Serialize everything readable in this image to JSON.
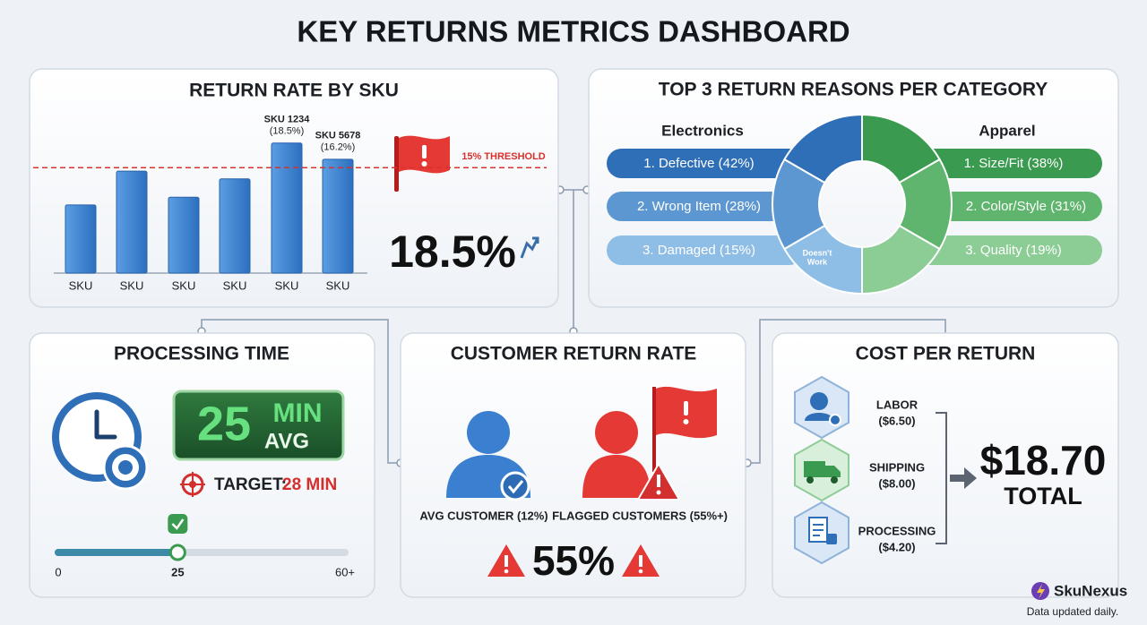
{
  "title": "KEY RETURNS METRICS DASHBOARD",
  "chart_data": {
    "type": "bar",
    "title": "RETURN RATE BY SKU",
    "categories": [
      "SKU",
      "SKU",
      "SKU",
      "SKU",
      "SKU",
      "SKU"
    ],
    "values": [
      9.7,
      14.5,
      10.8,
      13.4,
      18.5,
      16.2
    ],
    "bar_labels": [
      null,
      null,
      null,
      null,
      "SKU 1234",
      "SKU 5678"
    ],
    "value_labels": [
      null,
      null,
      null,
      null,
      "(18.5%)",
      "(16.2%)"
    ],
    "color": "#3b82d0",
    "ylim": [
      0,
      20
    ],
    "threshold": {
      "value": 15,
      "label": "15% THRESHOLD",
      "color": "#d9302c"
    },
    "highlight": "18.5%"
  },
  "reasons": {
    "title": "TOP 3 RETURN REASONS PER CATEGORY",
    "categories": [
      {
        "name": "Electronics",
        "reasons": [
          "1. Defective (42%)",
          "2. Wrong Item (28%)",
          "3. Damaged (15%)"
        ]
      },
      {
        "name": "Apparel",
        "reasons": [
          "1. Size/Fit (38%)",
          "2. Color/Style (31%)",
          "3. Quality (19%)"
        ]
      }
    ],
    "icon_label": [
      "Doesn't",
      "Work"
    ]
  },
  "processing": {
    "title": "PROCESSING TIME",
    "value": "25",
    "unit": "MIN",
    "stat": "AVG",
    "target_label": "TARGET:",
    "target_value": "28 MIN",
    "slider": {
      "xlim": [
        0,
        60
      ],
      "xticks": [
        0,
        25,
        {
          "value": 60,
          "label": "60+"
        }
      ],
      "value": 25
    }
  },
  "customer": {
    "title": "CUSTOMER RETURN RATE",
    "segments": [
      "AVG CUSTOMER (12%)",
      "FLAGGED CUSTOMERS (55%+)"
    ],
    "value": "55%"
  },
  "cost": {
    "title": "COST PER RETURN",
    "items": [
      {
        "name": "LABOR",
        "cost": "($6.50)"
      },
      {
        "name": "SHIPPING",
        "cost": "($8.00)"
      },
      {
        "name": "PROCESSING",
        "cost": "($4.20)"
      }
    ],
    "total": "$18.70",
    "total_label": "TOTAL"
  },
  "footer": {
    "brand": "SkuNexus",
    "note": "Data updated daily."
  }
}
